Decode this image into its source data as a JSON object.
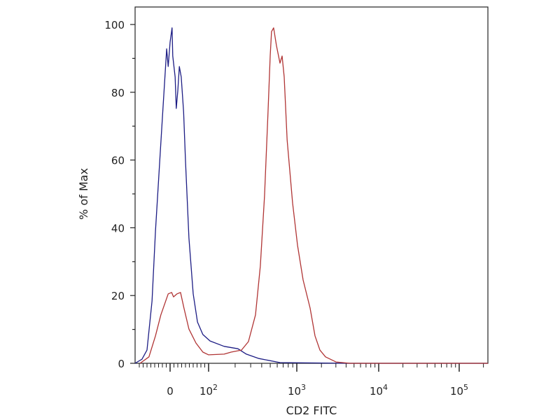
{
  "chart_data": {
    "type": "line",
    "title": "",
    "xlabel": "CD2 FITC",
    "ylabel": "% of Max",
    "x_scale": "biexponential",
    "xlim": [
      -91,
      229000
    ],
    "ylim": [
      0,
      100
    ],
    "grid": false,
    "y_ticks": [
      0,
      20,
      40,
      60,
      80,
      100
    ],
    "x_ticks": [
      {
        "value": 0,
        "label": "0",
        "exp": ""
      },
      {
        "value": 100,
        "label": "10",
        "exp": "2"
      },
      {
        "value": 1000,
        "label": "10",
        "exp": "3"
      },
      {
        "value": 10000,
        "label": "10",
        "exp": "4"
      },
      {
        "value": 100000,
        "label": "10",
        "exp": "5"
      }
    ],
    "series": [
      {
        "color": "#1c1c84",
        "x": [
          -91,
          -73,
          -60,
          -47,
          -38,
          -27,
          -18,
          -9,
          -5,
          0,
          5,
          7,
          13,
          16,
          20,
          24,
          29,
          35,
          40,
          49,
          60,
          71,
          85,
          104,
          150,
          215,
          268,
          373,
          645,
          4470,
          229000
        ],
        "y": [
          0,
          1.2,
          3.9,
          18.4,
          39,
          59.7,
          76.2,
          92.8,
          87.6,
          94.8,
          99,
          90.7,
          84.5,
          75.2,
          80.4,
          87.6,
          84.5,
          74.2,
          59.7,
          37,
          20.5,
          12.2,
          8.5,
          6.6,
          5,
          4.3,
          2.7,
          1.4,
          0.2,
          0,
          0
        ]
      },
      {
        "color": "#b03434",
        "x": [
          -78,
          -55,
          -38,
          -24,
          -5,
          4,
          9,
          18,
          27,
          36,
          49,
          67,
          85,
          100,
          150,
          180,
          236,
          283,
          340,
          386,
          431,
          472,
          499,
          517,
          546,
          588,
          645,
          681,
          720,
          777,
          896,
          1020,
          1194,
          1453,
          1668,
          1913,
          2240,
          3010,
          4470,
          229000
        ],
        "y": [
          0,
          1.9,
          8.1,
          14.3,
          20.5,
          20.9,
          19.6,
          20.5,
          20.9,
          16.3,
          10.1,
          6,
          3.3,
          2.5,
          2.7,
          3.3,
          3.9,
          6.4,
          14.3,
          28.7,
          49.4,
          74.2,
          90.7,
          97.9,
          99,
          93.8,
          88.6,
          90.7,
          84.5,
          65.9,
          47.3,
          34.9,
          24.6,
          16.3,
          8.1,
          3.9,
          1.9,
          0.4,
          0,
          0
        ]
      }
    ]
  }
}
